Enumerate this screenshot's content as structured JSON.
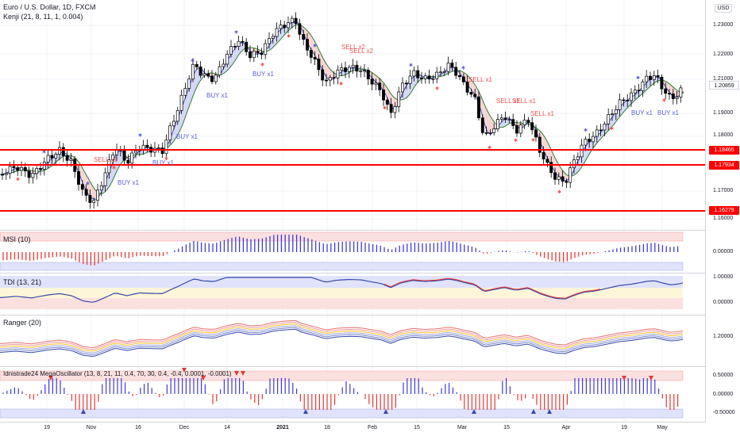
{
  "header": {
    "symbol": "Euro / U.S. Dollar, 1D, FXCM",
    "indicator": "Kenji (21, 8, 11, 1, 0.004)",
    "currency_button": "USD"
  },
  "price_axis": [
    "1.23000",
    "1.22000",
    "1.21000",
    "1.19000",
    "1.18000",
    "1.17000",
    "1.16000"
  ],
  "price_levels": [
    {
      "label": "1.18465",
      "color": "#ff0000"
    },
    {
      "label": "1.17934",
      "color": "#ff0000"
    },
    {
      "label": "1.16279",
      "color": "#ff0000"
    }
  ],
  "current_price": "1.20859",
  "signals": [
    {
      "text": "SELL x1"
    },
    {
      "text": "BUY x1"
    },
    {
      "text": "BUY x1"
    },
    {
      "text": "BUY x1"
    },
    {
      "text": "BUY x1"
    },
    {
      "text": "BUY x1"
    },
    {
      "text": "SELL x2"
    },
    {
      "text": "SELL x2"
    },
    {
      "text": "SELL x1"
    },
    {
      "text": "SELL x1"
    },
    {
      "text": "SELL x1"
    },
    {
      "text": "SELL x1"
    },
    {
      "text": "BUY x1"
    },
    {
      "text": "BUY x1"
    }
  ],
  "panels": {
    "msi": {
      "title": "MSI (10)",
      "axis": [
        "0.00000"
      ]
    },
    "tdi": {
      "title": "TDI (13, 21)",
      "axis": [
        "1.00000",
        "0.00000"
      ]
    },
    "ranger": {
      "title": "Ranger (20)",
      "axis": [
        "1.20000"
      ]
    },
    "mega": {
      "title": "Idnistrade24 MegaOscillator (13, 8, 21, 11, 0.4, 70, 30, 0.4, -0.4, 0.0001, -0.0001)",
      "axis": [
        "0.50000",
        "0.00000",
        "-0.50000"
      ]
    }
  },
  "time_axis": [
    {
      "label": "19",
      "bold": false
    },
    {
      "label": "Nov",
      "bold": false
    },
    {
      "label": "16",
      "bold": false
    },
    {
      "label": "Dec",
      "bold": false
    },
    {
      "label": "14",
      "bold": false
    },
    {
      "label": "2021",
      "bold": true
    },
    {
      "label": "18",
      "bold": false
    },
    {
      "label": "Feb",
      "bold": false
    },
    {
      "label": "15",
      "bold": false
    },
    {
      "label": "Mar",
      "bold": false
    },
    {
      "label": "15",
      "bold": false
    },
    {
      "label": "Apr",
      "bold": false
    },
    {
      "label": "19",
      "bold": false
    },
    {
      "label": "May",
      "bold": false
    }
  ],
  "colors": {
    "up": "#ffffff",
    "down": "#000000",
    "level": "#ff0000",
    "buy_signal": "#5b5fd6",
    "sell_signal": "#ef5350",
    "band_fill_up": "#d6d8f7",
    "band_fill_down": "#f7d6d6",
    "tdi_line": "#3949ab",
    "tdi_red": "#e53935"
  }
}
